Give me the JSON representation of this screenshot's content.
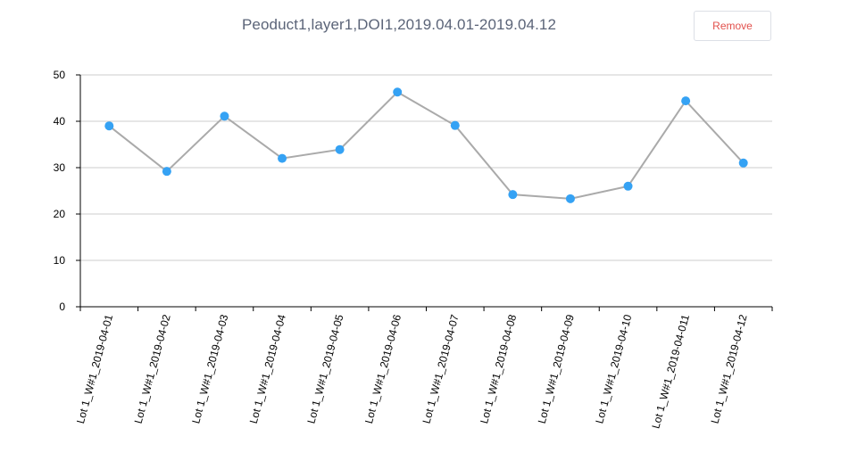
{
  "header": {
    "title": "Peoduct1,layer1,DOI1,2019.04.01-2019.04.12",
    "remove_label": "Remove"
  },
  "chart_data": {
    "type": "line",
    "title": "Peoduct1,layer1,DOI1,2019.04.01-2019.04.12",
    "xlabel": "",
    "ylabel": "",
    "categories": [
      "Lot 1_W#1_2019-04-01",
      "Lot 1_W#1_2019-04-02",
      "Lot 1_W#1_2019-04-03",
      "Lot 1_W#1_2019-04-04",
      "Lot 1_W#1_2019-04-05",
      "Lot 1_W#1_2019-04-06",
      "Lot 1_W#1_2019-04-07",
      "Lot 1_W#1_2019-04-08",
      "Lot 1_W#1_2019-04-09",
      "Lot 1_W#1_2019-04-10",
      "Lot 1_W#1_2019-04-011",
      "Lot 1_W#1_2019-04-12"
    ],
    "series": [
      {
        "values": [
          39,
          29.2,
          41.1,
          32,
          33.9,
          46.3,
          39.1,
          24.2,
          23.3,
          26,
          44.4,
          31
        ]
      }
    ],
    "ylim": [
      0,
      50
    ],
    "yticks": [
      0,
      10,
      20,
      30,
      40,
      50
    ],
    "grid": true,
    "legend": "none",
    "colors": {
      "line": "#aaaaaa",
      "marker": "#35a2f4",
      "grid": "#cccccc",
      "axis": "#000000"
    }
  }
}
